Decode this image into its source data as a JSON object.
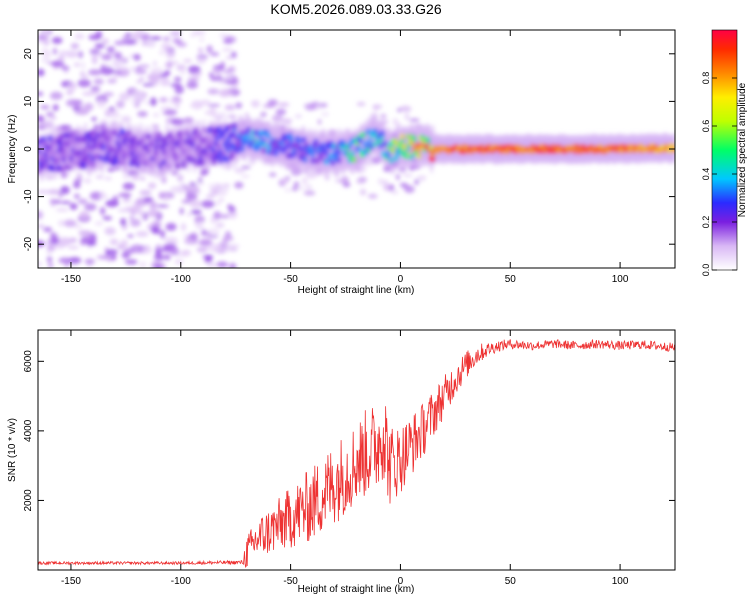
{
  "title": "KOM5.2026.089.03.33.G26",
  "chart_data": [
    {
      "type": "heatmap",
      "title": "KOM5.2026.089.03.33.G26",
      "xlabel": "Height of straight line (km)",
      "ylabel": "Frequency (Hz)",
      "xlim": [
        -165,
        125
      ],
      "ylim": [
        -25,
        25
      ],
      "x_ticks": [
        "-150",
        "-100",
        "-50",
        "0",
        "50",
        "100"
      ],
      "x_tick_values": [
        -150,
        -100,
        -50,
        0,
        50,
        100
      ],
      "y_ticks": [
        "-20",
        "-10",
        "0",
        "10",
        "20"
      ],
      "y_tick_values": [
        -20,
        -10,
        0,
        10,
        20
      ],
      "ridge": {
        "x": [
          -165,
          -150,
          -130,
          -110,
          -90,
          -75,
          -70,
          -60,
          -50,
          -40,
          -30,
          -20,
          -15,
          -12,
          -10,
          -5,
          0,
          5,
          10,
          15,
          20,
          40,
          60,
          80,
          100,
          125
        ],
        "freq": [
          -1.5,
          -0.5,
          0.5,
          -0.5,
          0.5,
          1.5,
          2.5,
          1.5,
          0.5,
          -0.5,
          -1.0,
          0.0,
          1.5,
          3.0,
          2.0,
          -0.5,
          0.5,
          0.5,
          0.5,
          0.0,
          0.0,
          0.0,
          0.0,
          0.0,
          0.0,
          0.2
        ],
        "amplitude": [
          0.25,
          0.2,
          0.25,
          0.2,
          0.22,
          0.3,
          0.4,
          0.35,
          0.3,
          0.3,
          0.35,
          0.55,
          0.45,
          0.4,
          0.45,
          0.5,
          0.6,
          0.75,
          0.8,
          0.85,
          0.9,
          0.92,
          0.9,
          0.92,
          0.9,
          0.8
        ]
      },
      "colorbar": {
        "label": "Normalized spectral amplitude",
        "range": [
          0,
          1
        ],
        "ticks": [
          "0.0",
          "0.2",
          "0.4",
          "0.6",
          "0.8"
        ],
        "tick_values": [
          0.0,
          0.2,
          0.4,
          0.6,
          0.8
        ]
      }
    },
    {
      "type": "line",
      "xlabel": "Height of straight line (km)",
      "ylabel": "SNR (10 * v/v)",
      "xlim": [
        -165,
        125
      ],
      "ylim": [
        0,
        6900
      ],
      "x_ticks": [
        "-150",
        "-100",
        "-50",
        "0",
        "50",
        "100"
      ],
      "x_tick_values": [
        -150,
        -100,
        -50,
        0,
        50,
        100
      ],
      "y_ticks": [
        "2000",
        "4000",
        "6000"
      ],
      "y_tick_values": [
        2000,
        4000,
        6000
      ],
      "series": [
        {
          "name": "SNR",
          "color": "#ee3333",
          "x": [
            -165,
            -100,
            -72,
            -70,
            -65,
            -60,
            -55,
            -50,
            -45,
            -40,
            -35,
            -30,
            -25,
            -20,
            -15,
            -10,
            -8,
            -5,
            0,
            5,
            10,
            15,
            20,
            25,
            30,
            35,
            40,
            45,
            50,
            60,
            70,
            80,
            90,
            100,
            110,
            125
          ],
          "y": [
            200,
            200,
            220,
            500,
            900,
            1100,
            1300,
            1500,
            1700,
            1900,
            2200,
            2500,
            2800,
            3100,
            3400,
            3600,
            4200,
            3000,
            3200,
            3600,
            4000,
            4500,
            5000,
            5500,
            5900,
            6200,
            6350,
            6450,
            6500,
            6450,
            6500,
            6450,
            6500,
            6450,
            6480,
            6400
          ],
          "noise": [
            40,
            40,
            60,
            500,
            600,
            700,
            800,
            900,
            1000,
            1100,
            1150,
            1200,
            1200,
            1200,
            1300,
            1300,
            1600,
            1200,
            1000,
            900,
            800,
            700,
            600,
            500,
            400,
            300,
            200,
            160,
            140,
            130,
            130,
            130,
            130,
            130,
            130,
            130
          ]
        }
      ]
    }
  ]
}
